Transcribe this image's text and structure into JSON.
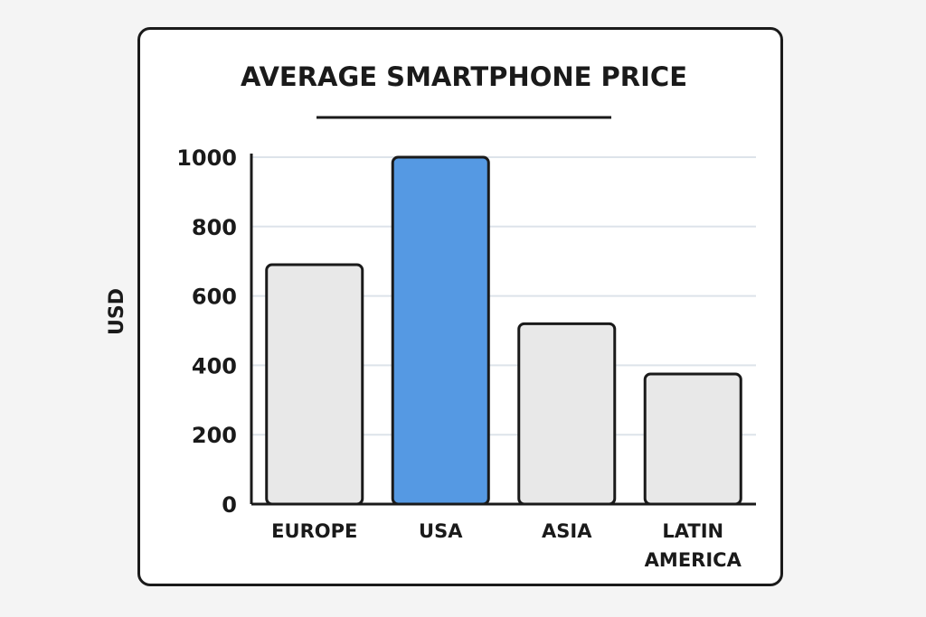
{
  "chart_data": {
    "type": "bar",
    "title": "AVERAGE SMARTPHONE PRICE",
    "xlabel": "",
    "ylabel": "USD",
    "categories": [
      "EUROPE",
      "USA",
      "ASIA",
      "LATIN AMERICA"
    ],
    "category_lines": [
      [
        "EUROPE"
      ],
      [
        "USA"
      ],
      [
        "ASIA"
      ],
      [
        "LATIN",
        "AMERICA"
      ]
    ],
    "values": [
      690,
      1000,
      520,
      375
    ],
    "ylim": [
      0,
      1000
    ],
    "yticks": [
      0,
      200,
      400,
      600,
      800,
      1000
    ],
    "grid": true,
    "colors": {
      "bar_default": "#e8e8e8",
      "bar_highlight": "#5599e3",
      "highlight_category": "USA",
      "outline": "#1a1a1a",
      "grid": "#dde3ea"
    }
  }
}
